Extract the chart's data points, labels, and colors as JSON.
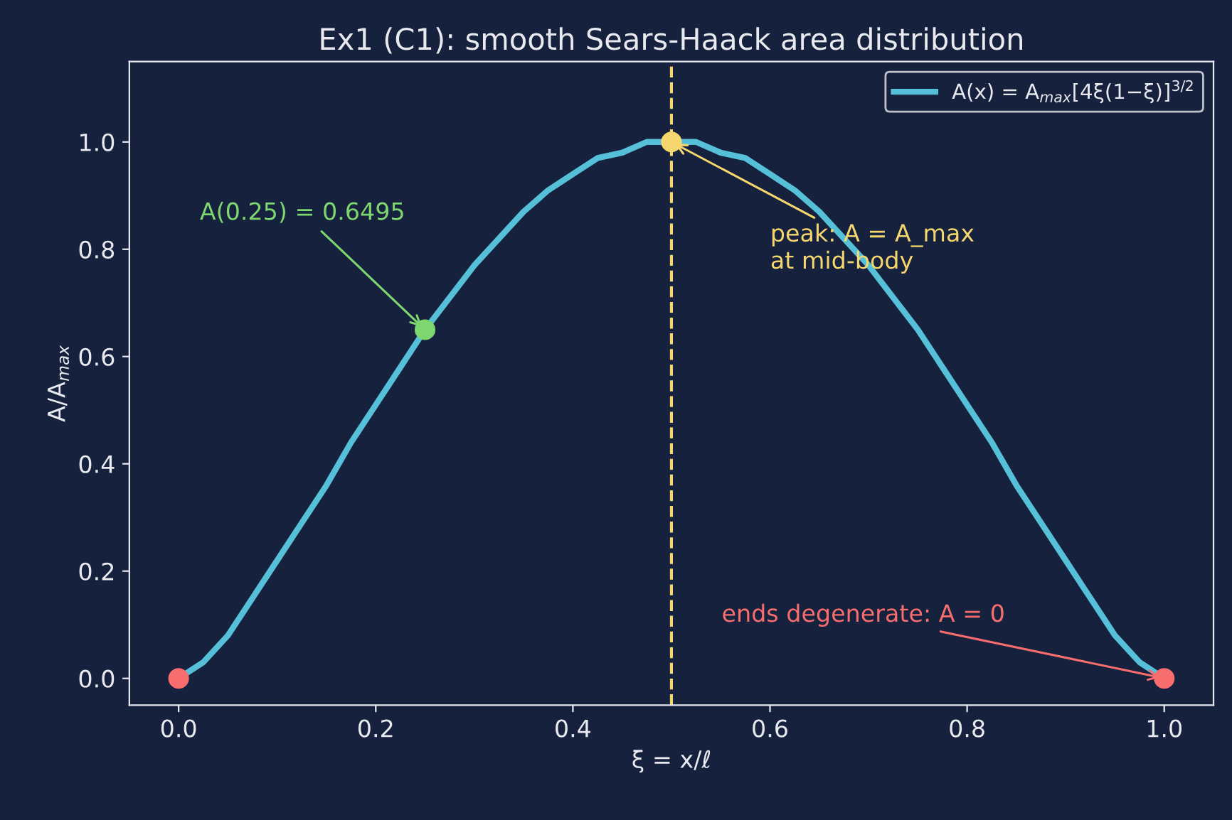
{
  "chart_data": {
    "type": "line",
    "title": "Ex1 (C1): smooth Sears-Haack area distribution",
    "xlabel": "ξ = x/ℓ",
    "ylabel": "A/A$_{max}$",
    "series": [
      {
        "name": "A(x) = A$_{max}$[4ξ(1−ξ)]$^{3/2}$",
        "color": "#56c0d8",
        "marker": "none",
        "x": [
          0,
          0.025,
          0.05,
          0.075,
          0.1,
          0.125,
          0.15,
          0.175,
          0.2,
          0.225,
          0.25,
          0.275,
          0.3,
          0.325,
          0.35,
          0.375,
          0.4,
          0.425,
          0.45,
          0.475,
          0.5,
          0.525,
          0.55,
          0.575,
          0.6,
          0.625,
          0.65,
          0.675,
          0.7,
          0.725,
          0.75,
          0.775,
          0.8,
          0.825,
          0.85,
          0.875,
          0.9,
          0.925,
          0.95,
          0.975,
          1.0
        ],
        "values": [
          0,
          0.03,
          0.08,
          0.15,
          0.22,
          0.29,
          0.36,
          0.44,
          0.51,
          0.58,
          0.65,
          0.71,
          0.77,
          0.82,
          0.87,
          0.91,
          0.94,
          0.97,
          0.98,
          1.0,
          1.0,
          1.0,
          0.98,
          0.97,
          0.94,
          0.91,
          0.87,
          0.82,
          0.77,
          0.71,
          0.65,
          0.58,
          0.51,
          0.44,
          0.36,
          0.29,
          0.22,
          0.15,
          0.08,
          0.03,
          0
        ]
      },
      {
        "type": "scatter",
        "marker": "circle",
        "color": "#f86d6d",
        "x": [
          0,
          1.0
        ],
        "values": [
          0,
          0
        ]
      },
      {
        "type": "scatter",
        "marker": "circle",
        "color": "#7ed66f",
        "x": [
          0.25
        ],
        "values": [
          0.65
        ]
      },
      {
        "type": "scatter",
        "marker": "circle",
        "color": "#f5d76e",
        "x": [
          0.5
        ],
        "values": [
          1.0
        ]
      }
    ],
    "ref_lines": [
      {
        "axis": "x",
        "value": 0.5,
        "color": "#f5d76e",
        "line_style": "dashed"
      }
    ],
    "annotations": [
      {
        "text": "A(0.25) = 0.6495",
        "x": 0.25,
        "y": 0.65
      },
      {
        "text": "peak: A = A_max\nat mid-body",
        "x": 0.5,
        "y": 1.0
      },
      {
        "text": "ends degenerate: A = 0",
        "x": 1.0,
        "y": 0
      }
    ],
    "xlim": [
      -0.05,
      1.05
    ],
    "ylim": [
      -0.05,
      1.15
    ],
    "xticks": [
      {
        "value": 0,
        "label": "0.0"
      },
      0.2,
      0.4,
      0.6,
      0.8,
      {
        "value": 1,
        "label": "1.0"
      }
    ],
    "yticks": [
      {
        "value": 0,
        "label": "0.0"
      },
      0.2,
      0.4,
      0.6,
      0.8,
      {
        "value": 1,
        "label": "1.0"
      }
    ],
    "grid": false,
    "legend": "top right",
    "line_style": "solid"
  }
}
